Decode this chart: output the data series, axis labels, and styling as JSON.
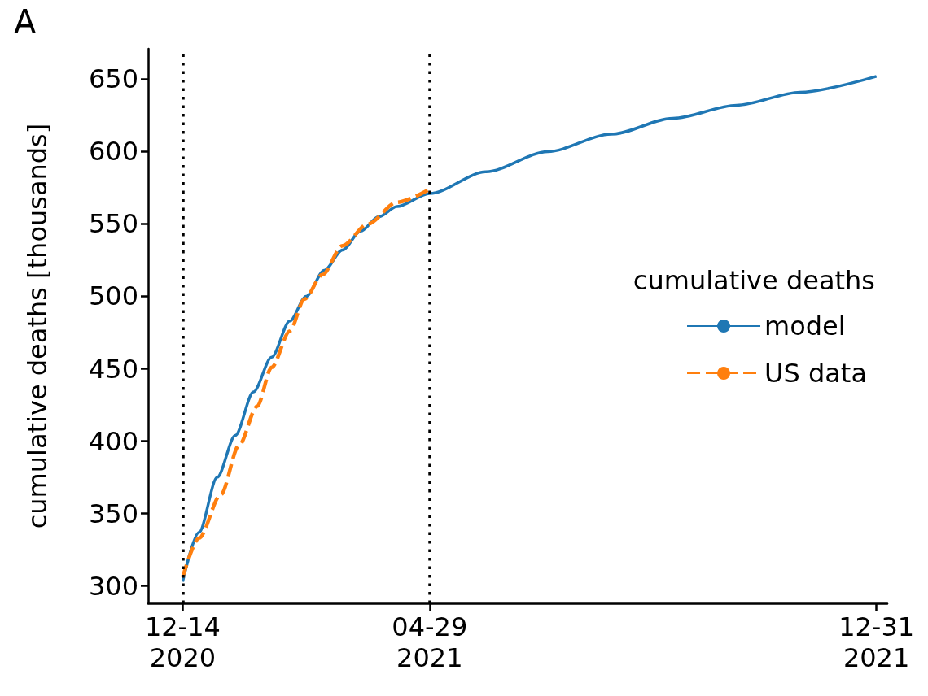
{
  "chart_data": {
    "type": "line",
    "ylabel": "cumulative deaths [thousands]",
    "legend_title": "cumulative deaths",
    "legend": "right",
    "marker": "none",
    "grid": false,
    "annotations": [
      "A"
    ],
    "xlim": [
      "2020-11-25",
      "2022-01-06"
    ],
    "ylim": [
      288,
      671
    ],
    "xticks": [
      {
        "value": "2020-12-14",
        "label": "12-14\n2020"
      },
      {
        "value": "2021-04-29",
        "label": "04-29\n2021"
      },
      {
        "value": "2021-12-31",
        "label": "12-31\n2021"
      }
    ],
    "yticks": [
      300,
      350,
      400,
      450,
      500,
      550,
      600,
      650
    ],
    "ref_lines": [
      {
        "axis": "x",
        "value": "2020-12-14",
        "label": null,
        "color": "#000000",
        "line_style": "dotted"
      },
      {
        "axis": "x",
        "value": "2021-04-29",
        "label": null,
        "color": "#000000",
        "line_style": "dotted"
      }
    ],
    "series": [
      {
        "name": "model",
        "color": "#1f77b4",
        "line_style": "solid",
        "x": [
          "2020-12-14",
          "2020-12-23",
          "2021-01-02",
          "2021-01-12",
          "2021-01-22",
          "2021-02-01",
          "2021-02-11",
          "2021-02-20",
          "2021-03-02",
          "2021-03-12",
          "2021-03-22",
          "2021-04-01",
          "2021-04-11",
          "2021-04-29",
          "2021-05-30",
          "2021-07-03",
          "2021-08-07",
          "2021-09-10",
          "2021-10-15",
          "2021-11-19",
          "2021-12-31"
        ],
        "values": [
          303,
          337,
          375,
          404,
          434,
          458,
          483,
          500,
          518,
          532,
          545,
          555,
          562,
          571,
          586,
          600,
          612,
          623,
          632,
          641,
          652
        ]
      },
      {
        "name": "US data",
        "color": "#ff7f0e",
        "line_style": "dashed",
        "x": [
          "2020-12-14",
          "2020-12-23",
          "2021-01-04",
          "2021-01-14",
          "2021-01-24",
          "2021-02-01",
          "2021-02-11",
          "2021-02-19",
          "2021-03-01",
          "2021-03-12",
          "2021-03-26",
          "2021-04-11",
          "2021-04-29"
        ],
        "values": [
          306,
          333,
          363,
          397,
          424,
          451,
          476,
          498,
          515,
          535,
          550,
          565,
          574
        ]
      }
    ]
  }
}
